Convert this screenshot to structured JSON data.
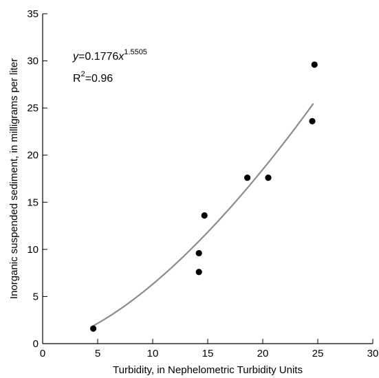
{
  "chart_data": {
    "type": "scatter",
    "xlabel": "Turbidity, in Nephelometric Turbidity Units",
    "ylabel": "Inorganic suspended sediment, in milligrams per liter",
    "xlim": [
      0,
      30
    ],
    "ylim": [
      0,
      35
    ],
    "xticks": [
      0,
      5,
      10,
      15,
      20,
      25,
      30
    ],
    "yticks": [
      0,
      5,
      10,
      15,
      20,
      25,
      30,
      35
    ],
    "grid": false,
    "series": [
      {
        "points": [
          {
            "x": 4.6,
            "y": 1.6
          },
          {
            "x": 14.2,
            "y": 7.6
          },
          {
            "x": 14.2,
            "y": 9.6
          },
          {
            "x": 14.7,
            "y": 13.6
          },
          {
            "x": 18.6,
            "y": 17.6
          },
          {
            "x": 20.5,
            "y": 17.6
          },
          {
            "x": 24.5,
            "y": 23.6
          },
          {
            "x": 24.7,
            "y": 29.6
          }
        ]
      }
    ],
    "fit": {
      "coef": 0.1776,
      "exponent": 1.5505,
      "x_range": [
        4.6,
        24.6
      ],
      "color": "#8c8c8c"
    },
    "annotations": {
      "eq_y": "y",
      "eq_eq": "=0.1776",
      "eq_x": "x",
      "eq_exp": "1.5505",
      "r2_r": "R",
      "r2_sup": "2",
      "r2_val": "=0.96"
    },
    "point_color": "#000000"
  }
}
